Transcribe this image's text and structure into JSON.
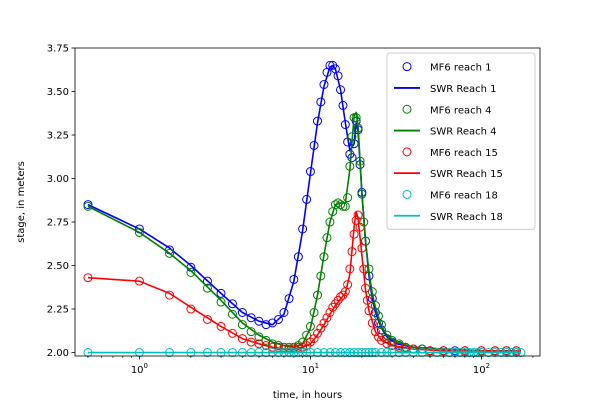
{
  "chart_data": {
    "type": "line",
    "xscale": "log",
    "xlabel": "time, in hours",
    "ylabel": "stage, in meters",
    "xlim": [
      0.42,
      220
    ],
    "ylim": [
      1.98,
      3.75
    ],
    "xticks": [
      {
        "value": 1,
        "base": "10",
        "exp": "0"
      },
      {
        "value": 10,
        "base": "10",
        "exp": "1"
      },
      {
        "value": 100,
        "base": "10",
        "exp": "2"
      }
    ],
    "yticks": [
      "2.00",
      "2.25",
      "2.50",
      "2.75",
      "3.00",
      "3.25",
      "3.50",
      "3.75"
    ],
    "legend": {
      "placement": "upper right"
    },
    "series": [
      {
        "name": "MF6 reach 1",
        "kind": "markers",
        "color": "#0000ff",
        "x": [
          0.5,
          1.0,
          1.5,
          2.0,
          2.5,
          3.0,
          3.5,
          4.0,
          4.5,
          5.0,
          5.5,
          6.0,
          6.5,
          7.0,
          7.5,
          8.0,
          8.5,
          9.0,
          9.5,
          10.0,
          10.5,
          11.0,
          11.5,
          12.0,
          12.5,
          13.0,
          13.5,
          14.0,
          14.5,
          15.0,
          15.5,
          16.0,
          16.5,
          17.0,
          17.5,
          18.0,
          18.5,
          19.0,
          19.5,
          20.0,
          21,
          22,
          23,
          24,
          25,
          26,
          28,
          30,
          33,
          36,
          40,
          45,
          50,
          60,
          70,
          80,
          100,
          120,
          140,
          160
        ],
        "y": [
          2.85,
          2.71,
          2.59,
          2.49,
          2.41,
          2.34,
          2.28,
          2.23,
          2.2,
          2.18,
          2.16,
          2.17,
          2.19,
          2.23,
          2.31,
          2.42,
          2.55,
          2.71,
          2.88,
          3.04,
          3.19,
          3.33,
          3.44,
          3.54,
          3.61,
          3.65,
          3.65,
          3.63,
          3.59,
          3.51,
          3.42,
          3.31,
          3.21,
          3.14,
          3.12,
          3.2,
          3.33,
          3.28,
          3.08,
          2.92,
          2.64,
          2.44,
          2.31,
          2.23,
          2.17,
          2.13,
          2.08,
          2.06,
          2.04,
          2.03,
          2.02,
          2.02,
          2.01,
          2.01,
          2.01,
          2.01,
          2.01,
          2.01,
          2.01,
          2.01
        ]
      },
      {
        "name": "SWR Reach 1",
        "kind": "line",
        "color": "#0000ff",
        "x": [
          0.5,
          1.0,
          1.5,
          2.0,
          3.0,
          4.0,
          5.0,
          6.0,
          7.0,
          8.0,
          9.0,
          10.0,
          11.0,
          12.0,
          13.0,
          13.5,
          14.0,
          15.0,
          16.0,
          17.0,
          18.0,
          18.5,
          19.0,
          20.0,
          21,
          22,
          23,
          24,
          26,
          28,
          32,
          40,
          60,
          100,
          170
        ],
        "y": [
          2.85,
          2.71,
          2.6,
          2.5,
          2.34,
          2.23,
          2.18,
          2.16,
          2.22,
          2.41,
          2.7,
          3.03,
          3.32,
          3.53,
          3.64,
          3.65,
          3.63,
          3.51,
          3.32,
          3.16,
          3.2,
          3.32,
          3.27,
          2.92,
          2.64,
          2.44,
          2.31,
          2.23,
          2.14,
          2.09,
          2.05,
          2.03,
          2.02,
          2.01,
          2.01
        ]
      },
      {
        "name": "MF6 reach 4",
        "kind": "markers",
        "color": "#008000",
        "x": [
          0.5,
          1.0,
          1.5,
          2.0,
          2.5,
          3.0,
          3.5,
          4.0,
          4.5,
          5.0,
          5.5,
          6.0,
          6.5,
          7.0,
          7.5,
          8.0,
          8.5,
          9.0,
          9.5,
          10.0,
          10.5,
          11.0,
          11.5,
          12.0,
          12.5,
          13.0,
          13.5,
          14.0,
          14.5,
          15.0,
          15.5,
          16.0,
          16.5,
          17.0,
          17.5,
          18.0,
          18.5,
          19.0,
          19.5,
          20.0,
          20.5,
          21,
          22,
          23,
          24,
          25,
          26,
          28,
          30,
          33,
          36,
          40,
          45,
          50,
          60,
          80,
          100,
          120,
          140,
          160
        ],
        "y": [
          2.84,
          2.69,
          2.57,
          2.46,
          2.37,
          2.29,
          2.22,
          2.16,
          2.12,
          2.09,
          2.07,
          2.05,
          2.04,
          2.03,
          2.03,
          2.03,
          2.04,
          2.06,
          2.1,
          2.15,
          2.23,
          2.33,
          2.44,
          2.55,
          2.66,
          2.75,
          2.81,
          2.85,
          2.86,
          2.85,
          2.84,
          2.84,
          2.89,
          3.07,
          3.24,
          3.35,
          3.35,
          3.29,
          3.1,
          2.91,
          2.75,
          2.64,
          2.48,
          2.35,
          2.27,
          2.21,
          2.16,
          2.1,
          2.07,
          2.05,
          2.03,
          2.02,
          2.02,
          2.01,
          2.01,
          2.01,
          2.01,
          2.01,
          2.01,
          2.01
        ]
      },
      {
        "name": "SWR Reach 4",
        "kind": "line",
        "color": "#008000",
        "x": [
          0.5,
          1.0,
          1.5,
          2.0,
          3.0,
          4.0,
          5.0,
          6.0,
          7.0,
          8.0,
          9.0,
          10.0,
          11.0,
          12.0,
          13.0,
          14.0,
          15.0,
          16.0,
          17.0,
          18.0,
          18.5,
          19.0,
          20.0,
          21,
          22,
          23,
          24,
          26,
          28,
          32,
          40,
          60,
          100,
          170
        ],
        "y": [
          2.84,
          2.69,
          2.57,
          2.47,
          2.3,
          2.17,
          2.1,
          2.06,
          2.04,
          2.03,
          2.05,
          2.14,
          2.33,
          2.56,
          2.75,
          2.85,
          2.86,
          2.86,
          3.05,
          3.36,
          3.38,
          3.3,
          2.91,
          2.64,
          2.46,
          2.34,
          2.26,
          2.15,
          2.1,
          2.06,
          2.03,
          2.02,
          2.01,
          2.01
        ]
      },
      {
        "name": "MF6 reach 15",
        "kind": "markers",
        "color": "#ff0000",
        "x": [
          0.5,
          1.0,
          1.5,
          2.0,
          2.5,
          3.0,
          3.5,
          4.0,
          4.5,
          5.0,
          5.5,
          6.0,
          6.5,
          7.0,
          7.5,
          8.0,
          8.5,
          9.0,
          9.5,
          10.0,
          10.5,
          11.0,
          11.5,
          12.0,
          12.5,
          13.0,
          13.5,
          14.0,
          14.5,
          15.0,
          15.5,
          16.0,
          16.5,
          17.0,
          17.5,
          18.0,
          18.5,
          19.0,
          19.5,
          20.0,
          20.5,
          21,
          21.5,
          22,
          23,
          24,
          25,
          26,
          28,
          30,
          33,
          36,
          40,
          50,
          60,
          80,
          100,
          120,
          140,
          160
        ],
        "y": [
          2.43,
          2.41,
          2.33,
          2.25,
          2.19,
          2.15,
          2.11,
          2.08,
          2.06,
          2.05,
          2.04,
          2.03,
          2.03,
          2.02,
          2.02,
          2.02,
          2.03,
          2.03,
          2.04,
          2.06,
          2.08,
          2.11,
          2.14,
          2.17,
          2.2,
          2.23,
          2.26,
          2.28,
          2.3,
          2.32,
          2.33,
          2.35,
          2.39,
          2.48,
          2.58,
          2.68,
          2.76,
          2.79,
          2.72,
          2.6,
          2.48,
          2.37,
          2.3,
          2.24,
          2.17,
          2.12,
          2.09,
          2.07,
          2.05,
          2.04,
          2.03,
          2.02,
          2.02,
          2.01,
          2.01,
          2.01,
          2.01,
          2.01,
          2.01,
          2.01
        ]
      },
      {
        "name": "SWR Reach 15",
        "kind": "line",
        "color": "#ff0000",
        "x": [
          0.5,
          1.0,
          1.5,
          2.0,
          3.0,
          4.0,
          5.0,
          6.0,
          7.0,
          8.0,
          9.0,
          10.0,
          11.0,
          12.0,
          13.0,
          14.0,
          15.0,
          16.0,
          17.0,
          18.0,
          18.5,
          19.0,
          20.0,
          21,
          22,
          24,
          26,
          30,
          40,
          60,
          100,
          170
        ],
        "y": [
          2.43,
          2.41,
          2.34,
          2.26,
          2.15,
          2.08,
          2.05,
          2.03,
          2.02,
          2.02,
          2.03,
          2.05,
          2.1,
          2.16,
          2.22,
          2.27,
          2.31,
          2.34,
          2.45,
          2.72,
          2.81,
          2.77,
          2.56,
          2.36,
          2.24,
          2.12,
          2.07,
          2.04,
          2.02,
          2.01,
          2.01,
          2.01
        ]
      },
      {
        "name": "MF6 reach 18",
        "kind": "markers",
        "color": "#00bfbf",
        "x": [
          0.5,
          1.0,
          1.5,
          2.0,
          2.5,
          3.0,
          3.5,
          4.0,
          4.5,
          5.0,
          5.5,
          6.0,
          6.5,
          7.0,
          7.5,
          8.0,
          8.5,
          9.0,
          9.5,
          10.0,
          11,
          12,
          13,
          14,
          15,
          16,
          17,
          18,
          19,
          20,
          21,
          22,
          23,
          24,
          26,
          28,
          30,
          33,
          36,
          40,
          45,
          50,
          55,
          60,
          65,
          70,
          75,
          80,
          85,
          90,
          95,
          100,
          110,
          120,
          130,
          140,
          150,
          160,
          170
        ],
        "y": [
          2.0,
          2.0,
          2.0,
          2.0,
          2.0,
          2.0,
          2.0,
          2.0,
          2.0,
          2.0,
          2.0,
          2.0,
          2.0,
          2.0,
          2.0,
          2.0,
          2.0,
          2.0,
          2.0,
          2.0,
          2.0,
          2.0,
          2.0,
          2.0,
          2.0,
          2.0,
          2.0,
          2.0,
          2.0,
          2.0,
          2.0,
          2.0,
          2.0,
          2.0,
          2.0,
          2.0,
          2.0,
          2.0,
          2.0,
          2.0,
          2.0,
          2.0,
          2.0,
          2.0,
          2.0,
          2.0,
          2.0,
          2.0,
          2.0,
          2.0,
          2.0,
          2.0,
          2.0,
          2.0,
          2.0,
          2.0,
          2.0,
          2.0,
          2.0
        ]
      },
      {
        "name": "SWR Reach 18",
        "kind": "line",
        "color": "#00bfbf",
        "x": [
          0.5,
          1.0,
          10.0,
          100,
          170
        ],
        "y": [
          2.0,
          2.0,
          2.0,
          2.0,
          2.0
        ]
      }
    ]
  }
}
